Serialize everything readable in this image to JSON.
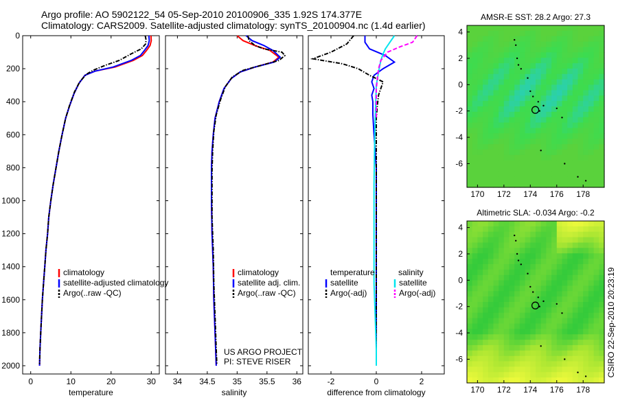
{
  "title_line1": "Argo profile: AO 5902122_54 05-Sep-2010 20100906_335 1.92S 174.377E",
  "title_line2": "Climatology: CARS2009. Satellite-adjusted climatology: synTS_20100904.nc (1.4d earlier)",
  "credit_project": "US ARGO PROJECT",
  "credit_pi": "PI: STEVE RISER",
  "side_stamp": "CSIRO 22-Sep-2010 20:23:19",
  "colors": {
    "climatology": "#ff0000",
    "satellite": "#0000ff",
    "argo": "#000000",
    "sat_salinity": "#00e5ee",
    "argo_salinity_adj": "#ff00ff"
  },
  "chart_data": [
    {
      "type": "line",
      "xlabel": "temperature",
      "ylabel": "",
      "xlim": [
        -2,
        32
      ],
      "ylim": [
        2050,
        0
      ],
      "y_inverted": true,
      "xticks": [
        0,
        10,
        20,
        30
      ],
      "yticks": [
        0,
        200,
        400,
        600,
        800,
        1000,
        1200,
        1400,
        1600,
        1800,
        2000
      ],
      "legend": [
        "climatology",
        "satellite-adjusted climatology",
        "Argo(..raw -QC)"
      ],
      "series": [
        {
          "name": "climatology",
          "color": "#ff0000",
          "dash": "solid",
          "points": [
            [
              29.9,
              0
            ],
            [
              30.0,
              30
            ],
            [
              29.7,
              60
            ],
            [
              28.8,
              90
            ],
            [
              27.8,
              120
            ],
            [
              25.5,
              150
            ],
            [
              21,
              190
            ],
            [
              16,
              215
            ],
            [
              13.5,
              240
            ],
            [
              12,
              290
            ],
            [
              10.8,
              350
            ],
            [
              9.6,
              430
            ],
            [
              8.7,
              500
            ],
            [
              7.8,
              600
            ],
            [
              7.0,
              700
            ],
            [
              6.3,
              800
            ],
            [
              5.6,
              900
            ],
            [
              5.0,
              1000
            ],
            [
              4.5,
              1100
            ],
            [
              4.2,
              1200
            ],
            [
              3.8,
              1300
            ],
            [
              3.5,
              1400
            ],
            [
              3.2,
              1500
            ],
            [
              2.9,
              1600
            ],
            [
              2.7,
              1700
            ],
            [
              2.5,
              1800
            ],
            [
              2.3,
              1900
            ],
            [
              2.2,
              2000
            ]
          ]
        },
        {
          "name": "satellite-adjusted climatology",
          "color": "#0000ff",
          "dash": "solid",
          "points": [
            [
              29.4,
              0
            ],
            [
              29.5,
              30
            ],
            [
              29.2,
              60
            ],
            [
              28.3,
              90
            ],
            [
              27.3,
              120
            ],
            [
              25.0,
              150
            ],
            [
              20.5,
              190
            ],
            [
              16,
              215
            ],
            [
              13.5,
              240
            ],
            [
              12,
              290
            ],
            [
              10.8,
              350
            ],
            [
              9.6,
              430
            ],
            [
              8.7,
              500
            ],
            [
              7.8,
              600
            ],
            [
              7.0,
              700
            ],
            [
              6.3,
              800
            ],
            [
              5.6,
              900
            ],
            [
              5.0,
              1000
            ],
            [
              4.5,
              1100
            ],
            [
              4.2,
              1200
            ],
            [
              3.8,
              1300
            ],
            [
              3.5,
              1400
            ],
            [
              3.2,
              1500
            ],
            [
              2.9,
              1600
            ],
            [
              2.7,
              1700
            ],
            [
              2.5,
              1800
            ],
            [
              2.3,
              1900
            ],
            [
              2.2,
              2000
            ]
          ]
        },
        {
          "name": "Argo(..raw -QC)",
          "color": "#000000",
          "dash": "dashdot",
          "points": [
            [
              28.5,
              0
            ],
            [
              28.7,
              25
            ],
            [
              28.6,
              50
            ],
            [
              27.5,
              80
            ],
            [
              25,
              110
            ],
            [
              22,
              150
            ],
            [
              18.5,
              180
            ],
            [
              15.5,
              210
            ],
            [
              13.8,
              235
            ],
            [
              12.2,
              280
            ],
            [
              10.9,
              340
            ],
            [
              9.7,
              420
            ],
            [
              8.7,
              500
            ],
            [
              7.8,
              600
            ],
            [
              7.0,
              700
            ],
            [
              6.3,
              800
            ],
            [
              5.6,
              900
            ],
            [
              5.0,
              1000
            ],
            [
              4.5,
              1100
            ],
            [
              4.2,
              1200
            ],
            [
              3.8,
              1300
            ],
            [
              3.5,
              1400
            ],
            [
              3.2,
              1500
            ],
            [
              2.9,
              1600
            ],
            [
              2.7,
              1700
            ],
            [
              2.5,
              1800
            ],
            [
              2.3,
              1900
            ],
            [
              2.2,
              1990
            ]
          ]
        }
      ]
    },
    {
      "type": "line",
      "xlabel": "salinity",
      "ylabel": "",
      "xlim": [
        33.8,
        36.1
      ],
      "ylim": [
        2050,
        0
      ],
      "y_inverted": true,
      "xticks": [
        34,
        34.5,
        35,
        35.5,
        36
      ],
      "legend": [
        "climatology",
        "satellite adj. clim.",
        "Argo(..raw -QC)"
      ],
      "series": [
        {
          "name": "climatology",
          "color": "#ff0000",
          "dash": "solid",
          "points": [
            [
              35.0,
              0
            ],
            [
              35.1,
              30
            ],
            [
              35.3,
              60
            ],
            [
              35.55,
              90
            ],
            [
              35.7,
              130
            ],
            [
              35.6,
              160
            ],
            [
              35.3,
              190
            ],
            [
              35.05,
              220
            ],
            [
              34.9,
              260
            ],
            [
              34.78,
              320
            ],
            [
              34.7,
              400
            ],
            [
              34.63,
              500
            ],
            [
              34.6,
              600
            ],
            [
              34.58,
              700
            ],
            [
              34.57,
              800
            ],
            [
              34.57,
              900
            ],
            [
              34.57,
              1000
            ],
            [
              34.58,
              1200
            ],
            [
              34.6,
              1400
            ],
            [
              34.61,
              1600
            ],
            [
              34.63,
              1800
            ],
            [
              34.65,
              2000
            ]
          ]
        },
        {
          "name": "satellite adj. clim.",
          "color": "#0000ff",
          "dash": "solid",
          "points": [
            [
              35.15,
              0
            ],
            [
              35.25,
              30
            ],
            [
              35.45,
              60
            ],
            [
              35.6,
              90
            ],
            [
              35.72,
              130
            ],
            [
              35.62,
              160
            ],
            [
              35.3,
              190
            ],
            [
              35.05,
              220
            ],
            [
              34.9,
              260
            ],
            [
              34.78,
              320
            ],
            [
              34.7,
              400
            ],
            [
              34.63,
              500
            ],
            [
              34.6,
              600
            ],
            [
              34.58,
              700
            ],
            [
              34.57,
              800
            ],
            [
              34.57,
              900
            ],
            [
              34.57,
              1000
            ],
            [
              34.58,
              1200
            ],
            [
              34.6,
              1400
            ],
            [
              34.61,
              1600
            ],
            [
              34.63,
              1800
            ],
            [
              34.65,
              2000
            ]
          ]
        },
        {
          "name": "Argo(..raw -QC)",
          "color": "#000000",
          "dash": "dashdot",
          "points": [
            [
              35.18,
              0
            ],
            [
              35.2,
              30
            ],
            [
              35.3,
              60
            ],
            [
              35.45,
              80
            ],
            [
              35.75,
              100
            ],
            [
              35.8,
              120
            ],
            [
              35.7,
              150
            ],
            [
              35.4,
              180
            ],
            [
              35.1,
              210
            ],
            [
              34.92,
              250
            ],
            [
              34.8,
              310
            ],
            [
              34.72,
              390
            ],
            [
              34.65,
              480
            ],
            [
              34.61,
              580
            ],
            [
              34.59,
              700
            ],
            [
              34.58,
              820
            ],
            [
              34.58,
              950
            ],
            [
              34.58,
              1100
            ],
            [
              34.6,
              1300
            ],
            [
              34.61,
              1500
            ],
            [
              34.63,
              1700
            ],
            [
              34.65,
              1900
            ],
            [
              34.66,
              1990
            ]
          ]
        }
      ]
    },
    {
      "type": "line",
      "xlabel": "difference from climatology",
      "ylabel": "",
      "xlim": [
        -3,
        3
      ],
      "ylim": [
        2050,
        0
      ],
      "y_inverted": true,
      "xticks": [
        -2,
        0,
        2
      ],
      "legend": [
        "temperature",
        "satellite",
        "Argo(-adj)",
        "salinity",
        "satellite",
        "Argo(-adj)"
      ],
      "series": [
        {
          "name": "satellite",
          "group": "temperature",
          "color": "#0000ff",
          "dash": "solid",
          "points": [
            [
              -0.5,
              0
            ],
            [
              -0.5,
              40
            ],
            [
              -0.3,
              80
            ],
            [
              0.4,
              120
            ],
            [
              0.8,
              160
            ],
            [
              0.3,
              200
            ],
            [
              -0.1,
              240
            ],
            [
              -0.2,
              280
            ],
            [
              -0.1,
              320
            ],
            [
              -0.2,
              360
            ],
            [
              -0.15,
              400
            ],
            [
              -0.15,
              480
            ],
            [
              -0.1,
              600
            ],
            [
              0,
              800
            ],
            [
              0,
              1000
            ],
            [
              0,
              1200
            ],
            [
              0,
              1500
            ],
            [
              0,
              1800
            ],
            [
              0,
              2000
            ]
          ]
        },
        {
          "name": "Argo(-adj)",
          "group": "temperature",
          "color": "#000000",
          "dash": "dashdot",
          "points": [
            [
              -1.0,
              0
            ],
            [
              -1.3,
              50
            ],
            [
              -2.0,
              100
            ],
            [
              -2.8,
              140
            ],
            [
              -1.5,
              170
            ],
            [
              -0.8,
              200
            ],
            [
              -0.3,
              240
            ],
            [
              0.3,
              280
            ],
            [
              0.2,
              320
            ],
            [
              0.1,
              360
            ],
            [
              0.05,
              420
            ],
            [
              0,
              500
            ],
            [
              0,
              600
            ],
            [
              0,
              800
            ],
            [
              0,
              1000
            ],
            [
              0,
              1200
            ],
            [
              0,
              1500
            ],
            [
              0,
              1800
            ],
            [
              0,
              2000
            ]
          ]
        },
        {
          "name": "satellite",
          "group": "salinity",
          "color": "#00e5ee",
          "dash": "solid",
          "points": [
            [
              0.8,
              0
            ],
            [
              0.6,
              40
            ],
            [
              0.4,
              80
            ],
            [
              0.3,
              110
            ],
            [
              0.2,
              150
            ],
            [
              0.1,
              220
            ],
            [
              0,
              300
            ],
            [
              -0.05,
              500
            ],
            [
              -0.08,
              700
            ],
            [
              -0.1,
              900
            ],
            [
              -0.1,
              1100
            ],
            [
              -0.1,
              1300
            ],
            [
              -0.1,
              1500
            ],
            [
              -0.05,
              1700
            ],
            [
              0,
              1900
            ],
            [
              0,
              2000
            ]
          ]
        },
        {
          "name": "Argo(-adj)",
          "group": "salinity",
          "color": "#ff00ff",
          "dash": "dash",
          "points": [
            [
              1.8,
              0
            ],
            [
              1.6,
              40
            ],
            [
              1.0,
              70
            ],
            [
              0.5,
              100
            ],
            [
              0.2,
              150
            ],
            [
              0.1,
              200
            ],
            [
              0.05,
              260
            ],
            [
              0,
              320
            ],
            [
              0,
              400
            ],
            [
              0,
              500
            ]
          ]
        }
      ]
    },
    {
      "type": "heatmap",
      "title": "AMSR-E SST: 28.2 Argo: 27.3",
      "xlim": [
        169.2,
        179.6
      ],
      "ylim": [
        -7.8,
        4.5
      ],
      "xticks": [
        170,
        172,
        174,
        176,
        178
      ],
      "yticks": [
        4,
        2,
        0,
        -2,
        -4,
        -6
      ],
      "float_position": [
        174.377,
        -1.92
      ]
    },
    {
      "type": "heatmap",
      "title": "Altimetric SLA: -0.034 Argo: -0.2",
      "xlim": [
        169.2,
        179.6
      ],
      "ylim": [
        -7.8,
        4.5
      ],
      "xticks": [
        170,
        172,
        174,
        176,
        178
      ],
      "yticks": [
        4,
        2,
        0,
        -2,
        -4,
        -6
      ],
      "float_position": [
        174.377,
        -1.92
      ]
    }
  ]
}
